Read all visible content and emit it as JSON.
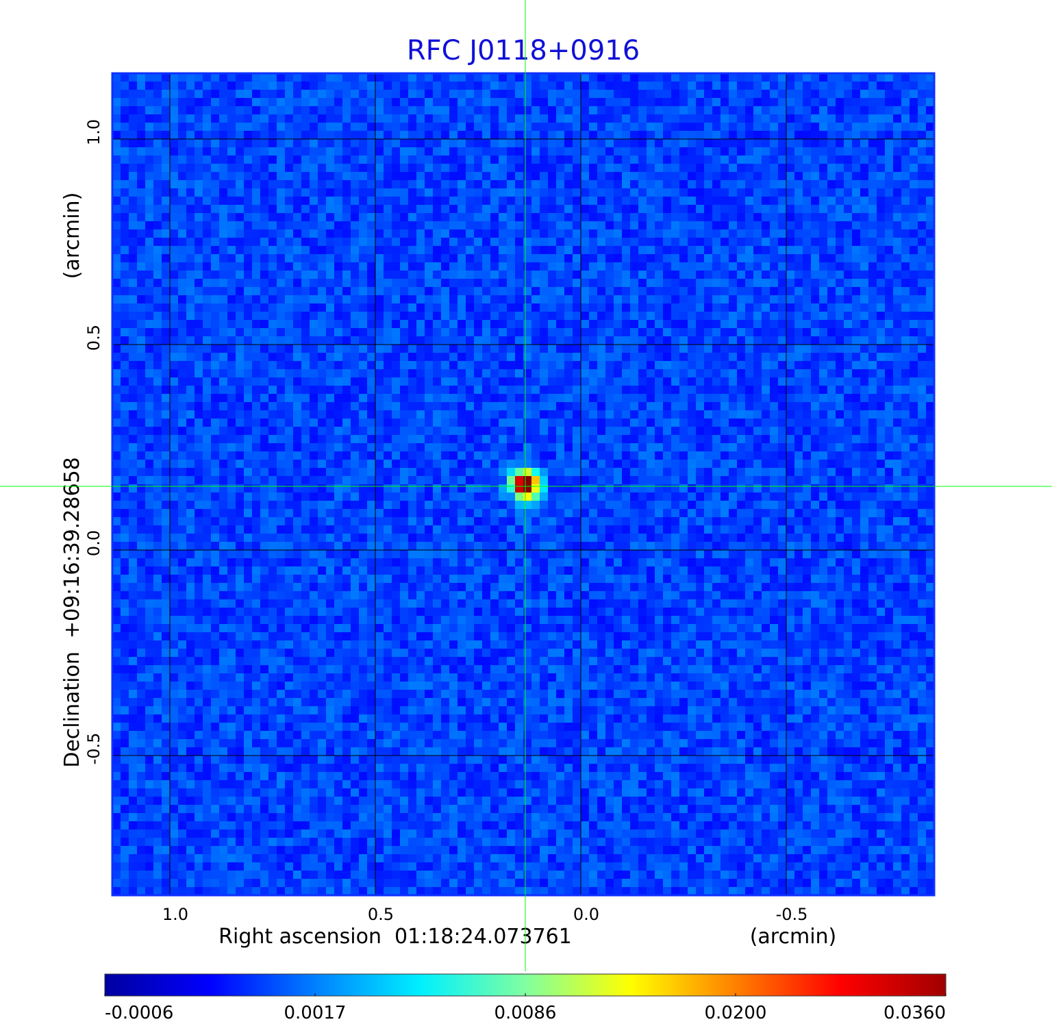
{
  "chart_data": {
    "type": "heatmap",
    "title": "RFC J0118+0916",
    "xlabel": "Right ascension  01:18:24.073761",
    "xunit": "(arcmin)",
    "ylabel": "Declination  +09:16:39.28658",
    "yunit": "(arcmin)",
    "x_ticks": [
      "1.0",
      "0.5",
      "0.0",
      "-0.5"
    ],
    "x_tick_values": [
      1.0,
      0.5,
      0.0,
      -0.5
    ],
    "y_ticks": [
      "1.0",
      "0.5",
      "0.0",
      "-0.5"
    ],
    "y_tick_values": [
      1.0,
      0.5,
      0.0,
      -0.5
    ],
    "xlim": [
      1.14,
      -0.86
    ],
    "ylim": [
      -0.84,
      1.16
    ],
    "grid": true,
    "crosshair": {
      "x": 0.135,
      "y": 0.155
    },
    "source_peak": {
      "x": 0.135,
      "y": 0.16,
      "value": 0.036
    },
    "colormap": "jet",
    "colorbar": {
      "ticks": [
        "-0.0006",
        "0.0017",
        "0.0086",
        "0.0200",
        "0.0360"
      ],
      "values": [
        -0.0006,
        0.0017,
        0.0086,
        0.02,
        0.036
      ],
      "colors": [
        "#0000a0",
        "#0000ff",
        "#0080ff",
        "#00f0ff",
        "#80ffa0",
        "#ffff00",
        "#ff8000",
        "#ff0000",
        "#a00000"
      ]
    },
    "colors": {
      "title": "#1010d8",
      "grid": "#000000",
      "crosshair": "#00ff00",
      "frame": "#1030ff"
    }
  }
}
